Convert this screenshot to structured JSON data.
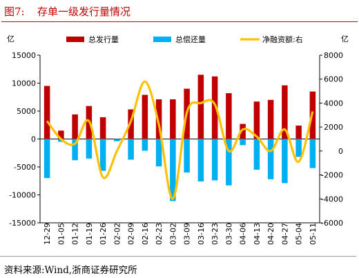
{
  "figure": {
    "label": "图7:",
    "title": "存单一级发行量情况",
    "source": "资料来源:Wind,浙商证券研究所"
  },
  "chart_data": {
    "type": "bar",
    "categories": [
      "12-29",
      "01-05",
      "01-12",
      "01-19",
      "01-26",
      "02-02",
      "02-09",
      "02-16",
      "02-23",
      "03-02",
      "03-09",
      "03-16",
      "03-23",
      "03-30",
      "04-06",
      "04-13",
      "04-20",
      "04-27",
      "05-04",
      "05-11"
    ],
    "series": [
      {
        "name": "总发行量",
        "type": "bar",
        "axis": "left",
        "color": "#c00000",
        "values": [
          9500,
          1500,
          4400,
          5900,
          3900,
          0,
          5300,
          7900,
          7100,
          7100,
          9000,
          11500,
          11200,
          8200,
          2700,
          6700,
          7000,
          9600,
          2400,
          8500
        ]
      },
      {
        "name": "总偿还量",
        "type": "bar",
        "axis": "left",
        "color": "#00b0f0",
        "values": [
          -7000,
          -500,
          -3800,
          -3500,
          -5700,
          -400,
          -3700,
          -2100,
          -4900,
          -11100,
          -6000,
          -7600,
          -7400,
          -8300,
          -1100,
          -5500,
          -7200,
          -7900,
          -3200,
          -5200
        ]
      },
      {
        "name": "净融资额:右",
        "type": "line",
        "axis": "right",
        "color": "#ffc000",
        "values": [
          2500,
          1000,
          600,
          2500,
          -2200,
          0,
          2500,
          5800,
          2200,
          -4000,
          3200,
          4000,
          3900,
          0,
          1800,
          1200,
          0,
          1800,
          -900,
          3300
        ]
      }
    ],
    "left_axis": {
      "unit": "亿",
      "ylim": [
        -15000,
        15000
      ],
      "ticks": [
        15000,
        10000,
        5000,
        0,
        -5000,
        -10000,
        -15000
      ]
    },
    "right_axis": {
      "unit": "亿",
      "ylim": [
        -6000,
        8000
      ],
      "ticks": [
        8000,
        6000,
        4000,
        2000,
        0,
        -2000,
        -4000,
        -6000
      ]
    },
    "legend_position": "top",
    "grid": false
  }
}
